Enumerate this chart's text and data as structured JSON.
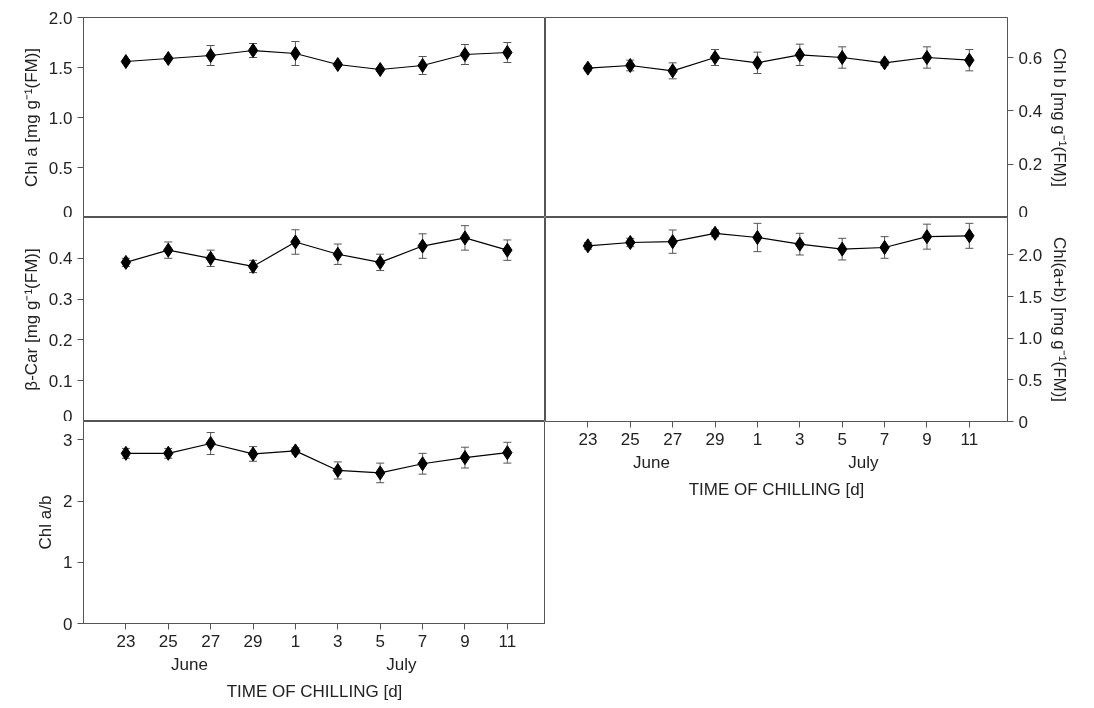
{
  "chart_data": [
    {
      "type": "line",
      "categories": [
        "23",
        "25",
        "27",
        "29",
        "1",
        "3",
        "5",
        "7",
        "9",
        "11"
      ],
      "marker": "diamond",
      "tick_labels": "y",
      "ylabel": "Chl a [mg g⁻¹(FM)]",
      "ylim": [
        0,
        2
      ],
      "yticks": [
        0,
        0.5,
        {
          "value": 1,
          "label": "1.0"
        },
        1.5,
        {
          "value": 2,
          "label": "2.0"
        }
      ],
      "series": [
        {
          "color": "#000000",
          "values": [
            1.56,
            1.59,
            1.62,
            1.67,
            1.64,
            1.53,
            1.48,
            1.52,
            1.63,
            1.65
          ],
          "errors": [
            0.02,
            0.02,
            0.1,
            0.07,
            0.12,
            0.02,
            0.02,
            0.09,
            0.1,
            0.1
          ]
        }
      ]
    },
    {
      "type": "line",
      "categories": [
        "23",
        "25",
        "27",
        "29",
        "1",
        "3",
        "5",
        "7",
        "9",
        "11"
      ],
      "marker": "diamond",
      "tick_labels": "y",
      "y2label": "Chl b [mg g⁻¹(FM)]",
      "y2lim": [
        0,
        0.75
      ],
      "y2ticks": [
        0,
        0.2,
        0.4,
        0.6
      ],
      "series": [
        {
          "color": "#000000",
          "axis": "y2",
          "values": [
            0.56,
            0.57,
            0.55,
            0.6,
            0.58,
            0.61,
            0.6,
            0.58,
            0.6,
            0.59
          ],
          "errors": [
            0.01,
            0.02,
            0.03,
            0.03,
            0.04,
            0.04,
            0.04,
            0.01,
            0.04,
            0.04
          ]
        }
      ]
    },
    {
      "type": "line",
      "categories": [
        "23",
        "25",
        "27",
        "29",
        "1",
        "3",
        "5",
        "7",
        "9",
        "11"
      ],
      "marker": "diamond",
      "tick_labels": "y",
      "ylabel": "β-Car [mg g⁻¹(FM)]",
      "ylim": [
        0,
        0.5
      ],
      "yticks": [
        0,
        0.1,
        0.2,
        0.3,
        0.4
      ],
      "series": [
        {
          "color": "#000000",
          "values": [
            0.39,
            0.42,
            0.4,
            0.38,
            0.44,
            0.41,
            0.39,
            0.43,
            0.45,
            0.42
          ],
          "errors": [
            0.01,
            0.02,
            0.02,
            0.015,
            0.03,
            0.025,
            0.02,
            0.03,
            0.03,
            0.025
          ]
        }
      ]
    },
    {
      "type": "line",
      "categories": [
        "23",
        "25",
        "27",
        "29",
        "1",
        "3",
        "5",
        "7",
        "9",
        "11"
      ],
      "marker": "diamond",
      "xlabel": "TIME OF CHILLING [d]",
      "annotations": [
        "June",
        "July"
      ],
      "y2label": "Chl(a+b) [mg g⁻¹(FM)]",
      "y2lim": [
        0,
        2.45
      ],
      "y2ticks": [
        0,
        0.5,
        {
          "value": 1,
          "label": "1.0"
        },
        1.5,
        {
          "value": 2,
          "label": "2.0"
        }
      ],
      "series": [
        {
          "color": "#000000",
          "axis": "y2",
          "values": [
            2.11,
            2.15,
            2.16,
            2.26,
            2.21,
            2.13,
            2.07,
            2.09,
            2.22,
            2.23
          ],
          "errors": [
            0.04,
            0.05,
            0.14,
            0.04,
            0.17,
            0.13,
            0.13,
            0.13,
            0.15,
            0.15
          ]
        }
      ]
    },
    {
      "type": "line",
      "categories": [
        "23",
        "25",
        "27",
        "29",
        "1",
        "3",
        "5",
        "7",
        "9",
        "11"
      ],
      "marker": "diamond",
      "xlabel": "TIME OF CHILLING [d]",
      "annotations": [
        "June",
        "July"
      ],
      "ylabel": "Chl a/b",
      "ylim": [
        0,
        3.3
      ],
      "yticks": [
        0,
        1,
        2,
        3
      ],
      "series": [
        {
          "color": "#000000",
          "values": [
            2.78,
            2.78,
            2.94,
            2.77,
            2.82,
            2.5,
            2.46,
            2.61,
            2.71,
            2.79
          ],
          "errors": [
            0.08,
            0.08,
            0.18,
            0.12,
            0.05,
            0.14,
            0.16,
            0.17,
            0.17,
            0.17
          ]
        }
      ]
    }
  ]
}
